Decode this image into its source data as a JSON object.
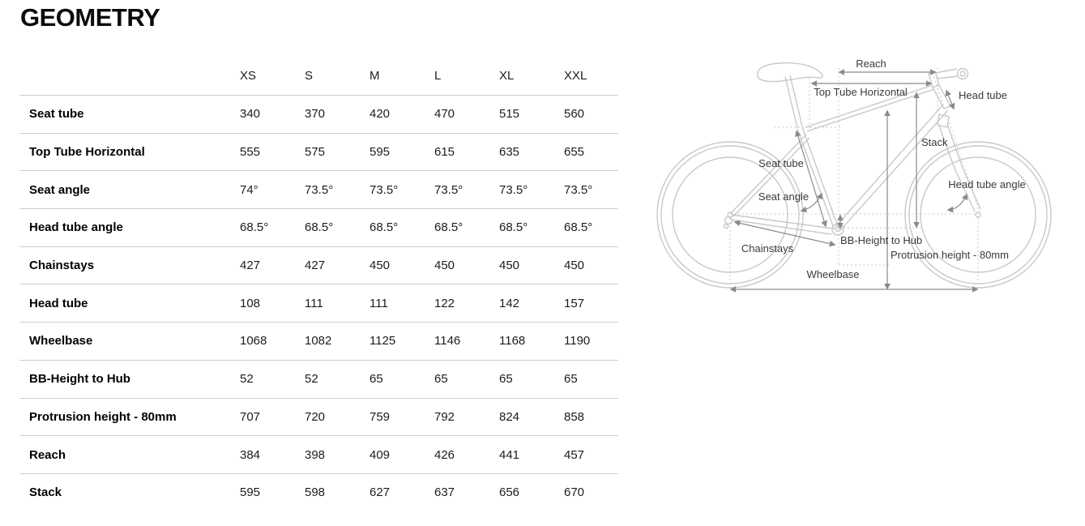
{
  "page": {
    "title": "GEOMETRY"
  },
  "table": {
    "size_headers": [
      "XS",
      "S",
      "M",
      "L",
      "XL",
      "XXL"
    ],
    "rows": [
      {
        "label": "Seat tube",
        "values": [
          "340",
          "370",
          "420",
          "470",
          "515",
          "560"
        ]
      },
      {
        "label": "Top Tube Horizontal",
        "values": [
          "555",
          "575",
          "595",
          "615",
          "635",
          "655"
        ]
      },
      {
        "label": "Seat angle",
        "values": [
          "74°",
          "73.5°",
          "73.5°",
          "73.5°",
          "73.5°",
          "73.5°"
        ]
      },
      {
        "label": "Head tube angle",
        "values": [
          "68.5°",
          "68.5°",
          "68.5°",
          "68.5°",
          "68.5°",
          "68.5°"
        ]
      },
      {
        "label": "Chainstays",
        "values": [
          "427",
          "427",
          "450",
          "450",
          "450",
          "450"
        ]
      },
      {
        "label": "Head tube",
        "values": [
          "108",
          "111",
          "111",
          "122",
          "142",
          "157"
        ]
      },
      {
        "label": "Wheelbase",
        "values": [
          "1068",
          "1082",
          "1125",
          "1146",
          "1168",
          "1190"
        ]
      },
      {
        "label": "BB-Height to Hub",
        "values": [
          "52",
          "52",
          "65",
          "65",
          "65",
          "65"
        ]
      },
      {
        "label": "Protrusion height - 80mm",
        "values": [
          "707",
          "720",
          "759",
          "792",
          "824",
          "858"
        ]
      },
      {
        "label": "Reach",
        "values": [
          "384",
          "398",
          "409",
          "426",
          "441",
          "457"
        ]
      },
      {
        "label": "Stack",
        "values": [
          "595",
          "598",
          "627",
          "637",
          "656",
          "670"
        ]
      }
    ]
  },
  "diagram": {
    "labels": {
      "reach": "Reach",
      "top_tube_horizontal": "Top Tube Horizontal",
      "head_tube": "Head tube",
      "stack": "Stack",
      "seat_tube": "Seat tube",
      "head_tube_angle": "Head tube angle",
      "seat_angle": "Seat angle",
      "chainstays": "Chainstays",
      "bb_height_to_hub": "BB-Height to Hub",
      "protrusion_height": "Protrusion height - 80mm",
      "wheelbase": "Wheelbase"
    },
    "colors": {
      "bike_outline": "#c9c9c9",
      "dimension_lines": "#8a8a8a",
      "label_text": "#3a3a3a",
      "table_rule": "#c9ced1"
    }
  }
}
